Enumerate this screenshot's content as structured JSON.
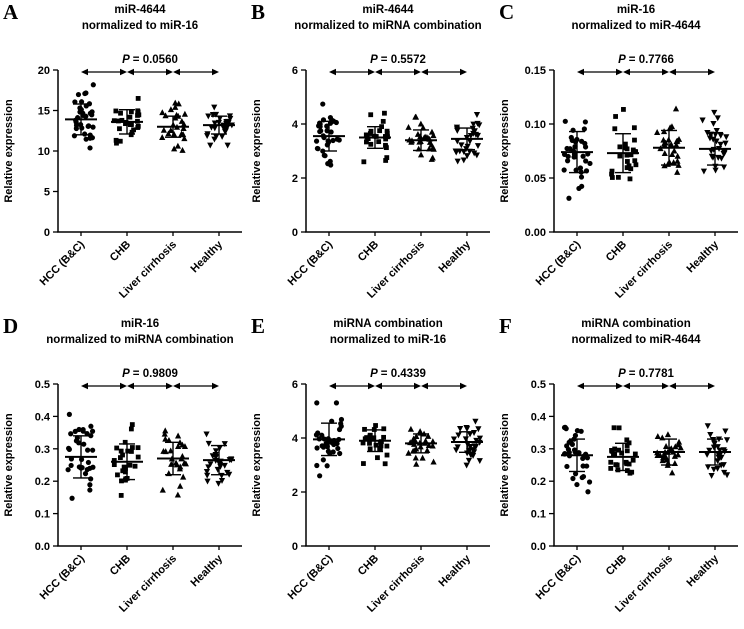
{
  "figure": {
    "background": "#ffffff",
    "foreground": "#000000",
    "ylabel": "Relative expression",
    "categories": [
      "HCC (B&C)",
      "CHB",
      "Liver cirrhosis",
      "Healthy"
    ]
  },
  "chart_data": [
    {
      "type": "scatter",
      "letter": "A",
      "title": [
        "miR-4644",
        "normalized to miR-16"
      ],
      "p_symbol": "P",
      "p_rest": "= 0.0560",
      "ylabel": "Relative expression",
      "categories": [
        "HCC (B&C)",
        "CHB",
        "Liver cirrhosis",
        "Healthy"
      ],
      "ylim": [
        0,
        20
      ],
      "ytick_values": [
        0,
        5,
        10,
        15,
        20
      ],
      "ytick_labels": [
        "0",
        "5",
        "10",
        "15",
        "20"
      ],
      "legend": "none",
      "grid": false,
      "series": [
        {
          "name": "HCC (B&C)",
          "marker": "circle",
          "n": 34,
          "mean": 13.9,
          "sd": 1.9
        },
        {
          "name": "CHB",
          "marker": "square",
          "n": 26,
          "mean": 13.6,
          "sd": 1.5
        },
        {
          "name": "Liver cirrhosis",
          "marker": "triangle-up",
          "n": 27,
          "mean": 13.0,
          "sd": 1.3
        },
        {
          "name": "Healthy",
          "marker": "triangle-down",
          "n": 30,
          "mean": 13.2,
          "sd": 1.1
        }
      ]
    },
    {
      "type": "scatter",
      "letter": "B",
      "title": [
        "miR-4644",
        "normalized to miRNA combination"
      ],
      "p_symbol": "P",
      "p_rest": "= 0.5572",
      "ylabel": "Relative expression",
      "categories": [
        "HCC (B&C)",
        "CHB",
        "Liver cirrhosis",
        "Healthy"
      ],
      "ylim": [
        0,
        6
      ],
      "ytick_values": [
        0,
        2,
        4,
        6
      ],
      "ytick_labels": [
        "0",
        "2",
        "4",
        "6"
      ],
      "legend": "none",
      "grid": false,
      "series": [
        {
          "name": "HCC (B&C)",
          "marker": "circle",
          "n": 34,
          "mean": 3.55,
          "sd": 0.55
        },
        {
          "name": "CHB",
          "marker": "square",
          "n": 26,
          "mean": 3.5,
          "sd": 0.4
        },
        {
          "name": "Liver cirrhosis",
          "marker": "triangle-up",
          "n": 27,
          "mean": 3.4,
          "sd": 0.38
        },
        {
          "name": "Healthy",
          "marker": "triangle-down",
          "n": 30,
          "mean": 3.45,
          "sd": 0.4
        }
      ]
    },
    {
      "type": "scatter",
      "letter": "C",
      "title": [
        "miR-16",
        "normalized to miR-4644"
      ],
      "p_symbol": "P",
      "p_rest": "= 0.7766",
      "ylabel": "Relative expression",
      "categories": [
        "HCC (B&C)",
        "CHB",
        "Liver cirrhosis",
        "Healthy"
      ],
      "ylim": [
        0,
        0.15
      ],
      "ytick_values": [
        0,
        0.05,
        0.1,
        0.15
      ],
      "ytick_labels": [
        "0.00",
        "0.05",
        "0.10",
        "0.15"
      ],
      "legend": "none",
      "grid": false,
      "series": [
        {
          "name": "HCC (B&C)",
          "marker": "circle",
          "n": 34,
          "mean": 0.074,
          "sd": 0.019
        },
        {
          "name": "CHB",
          "marker": "square",
          "n": 26,
          "mean": 0.073,
          "sd": 0.018
        },
        {
          "name": "Liver cirrhosis",
          "marker": "triangle-up",
          "n": 27,
          "mean": 0.078,
          "sd": 0.016
        },
        {
          "name": "Healthy",
          "marker": "triangle-down",
          "n": 30,
          "mean": 0.077,
          "sd": 0.015
        }
      ]
    },
    {
      "type": "scatter",
      "letter": "D",
      "title": [
        "miR-16",
        "normalized to miRNA combination"
      ],
      "p_symbol": "P",
      "p_rest": "= 0.9809",
      "ylabel": "Relative expression",
      "categories": [
        "HCC (B&C)",
        "CHB",
        "Liver cirrhosis",
        "Healthy"
      ],
      "ylim": [
        0,
        0.5
      ],
      "ytick_values": [
        0,
        0.1,
        0.2,
        0.3,
        0.4,
        0.5
      ],
      "ytick_labels": [
        "0.0",
        "0.1",
        "0.2",
        "0.3",
        "0.4",
        "0.5"
      ],
      "legend": "none",
      "grid": false,
      "series": [
        {
          "name": "HCC (B&C)",
          "marker": "circle",
          "n": 34,
          "mean": 0.275,
          "sd": 0.065
        },
        {
          "name": "CHB",
          "marker": "square",
          "n": 26,
          "mean": 0.26,
          "sd": 0.055
        },
        {
          "name": "Liver cirrhosis",
          "marker": "triangle-up",
          "n": 27,
          "mean": 0.27,
          "sd": 0.05
        },
        {
          "name": "Healthy",
          "marker": "triangle-down",
          "n": 30,
          "mean": 0.265,
          "sd": 0.045
        }
      ]
    },
    {
      "type": "scatter",
      "letter": "E",
      "title": [
        "miRNA combination",
        "normalized to miR-16"
      ],
      "p_symbol": "P",
      "p_rest": "= 0.4339",
      "ylabel": "Relative expression",
      "categories": [
        "HCC (B&C)",
        "CHB",
        "Liver cirrhosis",
        "Healthy"
      ],
      "ylim": [
        0,
        6
      ],
      "ytick_values": [
        0,
        2,
        4,
        6
      ],
      "ytick_labels": [
        "0",
        "2",
        "4",
        "6"
      ],
      "legend": "none",
      "grid": false,
      "series": [
        {
          "name": "HCC (B&C)",
          "marker": "circle",
          "n": 34,
          "mean": 3.95,
          "sd": 0.6
        },
        {
          "name": "CHB",
          "marker": "square",
          "n": 26,
          "mean": 3.9,
          "sd": 0.4
        },
        {
          "name": "Liver cirrhosis",
          "marker": "triangle-up",
          "n": 27,
          "mean": 3.8,
          "sd": 0.35
        },
        {
          "name": "Healthy",
          "marker": "triangle-down",
          "n": 30,
          "mean": 3.85,
          "sd": 0.38
        }
      ]
    },
    {
      "type": "scatter",
      "letter": "F",
      "title": [
        "miRNA combination",
        "normalized to miR-4644"
      ],
      "p_symbol": "P",
      "p_rest": "= 0.7781",
      "ylabel": "Relative expression",
      "categories": [
        "HCC (B&C)",
        "CHB",
        "Liver cirrhosis",
        "Healthy"
      ],
      "ylim": [
        0,
        0.5
      ],
      "ytick_values": [
        0,
        0.1,
        0.2,
        0.3,
        0.4,
        0.5
      ],
      "ytick_labels": [
        "0.0",
        "0.1",
        "0.2",
        "0.3",
        "0.4",
        "0.5"
      ],
      "legend": "none",
      "grid": false,
      "series": [
        {
          "name": "HCC (B&C)",
          "marker": "circle",
          "n": 34,
          "mean": 0.28,
          "sd": 0.05
        },
        {
          "name": "CHB",
          "marker": "square",
          "n": 26,
          "mean": 0.275,
          "sd": 0.042
        },
        {
          "name": "Liver cirrhosis",
          "marker": "triangle-up",
          "n": 27,
          "mean": 0.29,
          "sd": 0.04
        },
        {
          "name": "Healthy",
          "marker": "triangle-down",
          "n": 30,
          "mean": 0.29,
          "sd": 0.04
        }
      ]
    }
  ]
}
